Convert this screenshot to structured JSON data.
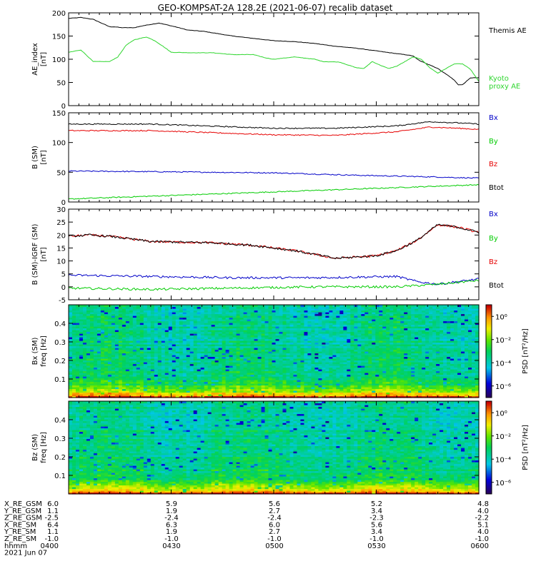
{
  "title": "GEO-KOMPSAT-2A 128.2E (2021-06-07) recalib dataset",
  "colors": {
    "black": "#000000",
    "blue": "#0000c8",
    "green": "#00cc00",
    "red": "#e60000",
    "kyoto": "#2fd62f"
  },
  "chart_data": [
    {
      "type": "line",
      "ylabel": "AE_index\n[nT]",
      "ylim": [
        0,
        200
      ],
      "yticks": [
        0,
        50,
        100,
        150,
        200
      ],
      "series": [
        {
          "name": "Themis AE",
          "color": "#000000",
          "x": [
            0,
            3,
            6,
            8,
            10,
            11,
            13,
            16,
            18,
            22,
            26,
            29,
            33,
            40,
            45,
            50,
            55,
            60,
            65,
            70,
            75,
            80,
            82,
            84,
            85,
            86,
            88,
            90,
            93,
            94,
            95,
            96,
            98,
            100
          ],
          "values": [
            188,
            190,
            186,
            178,
            170,
            170,
            168,
            168,
            172,
            178,
            170,
            163,
            160,
            150,
            145,
            140,
            138,
            134,
            128,
            124,
            118,
            112,
            110,
            107,
            100,
            95,
            88,
            80,
            62,
            55,
            45,
            45,
            60,
            60
          ]
        },
        {
          "name": "Kyoto\nproxy AE",
          "color": "#2fd62f",
          "x": [
            0,
            3,
            6,
            10,
            12,
            14,
            16,
            19,
            21,
            23,
            25,
            30,
            35,
            40,
            45,
            48,
            50,
            53,
            55,
            60,
            62,
            66,
            68,
            70,
            72,
            74,
            76,
            78,
            80,
            82,
            84,
            86,
            88,
            90,
            92,
            94,
            96,
            98,
            100
          ],
          "values": [
            115,
            120,
            95,
            95,
            105,
            130,
            142,
            148,
            140,
            128,
            115,
            114,
            114,
            110,
            110,
            103,
            100,
            103,
            105,
            100,
            95,
            94,
            88,
            82,
            80,
            95,
            87,
            80,
            85,
            95,
            105,
            100,
            82,
            70,
            80,
            90,
            90,
            78,
            52
          ]
        }
      ]
    },
    {
      "type": "line",
      "ylabel": "B (SM)\n[nT]",
      "ylim": [
        0,
        150
      ],
      "yticks": [
        0,
        50,
        100,
        150
      ],
      "series": [
        {
          "name": "Bx",
          "color": "#0000c8",
          "x": [
            0,
            20,
            50,
            70,
            90,
            100
          ],
          "values": [
            52,
            51,
            49,
            45,
            42,
            40
          ]
        },
        {
          "name": "By",
          "color": "#00cc00",
          "x": [
            0,
            25,
            50,
            75,
            100
          ],
          "values": [
            5,
            11,
            17,
            23,
            29
          ]
        },
        {
          "name": "Bz",
          "color": "#e60000",
          "x": [
            0,
            20,
            50,
            65,
            80,
            88,
            95,
            100
          ],
          "values": [
            120,
            120,
            113,
            112,
            118,
            126,
            124,
            122
          ]
        },
        {
          "name": "Btot",
          "color": "#000000",
          "x": [
            0,
            20,
            50,
            65,
            80,
            88,
            95,
            100
          ],
          "values": [
            131,
            131,
            124,
            124,
            128,
            135,
            133,
            131
          ]
        }
      ]
    },
    {
      "type": "line",
      "ylabel": "B (SM)-IGRF (SM)\n[nT]",
      "ylim": [
        -5,
        30
      ],
      "yticks": [
        -5,
        0,
        5,
        10,
        15,
        20,
        25,
        30
      ],
      "series": [
        {
          "name": "Bx",
          "color": "#0000c8",
          "x": [
            0,
            20,
            40,
            60,
            80,
            85,
            90,
            100
          ],
          "values": [
            4.5,
            4,
            3.5,
            3.5,
            4,
            2,
            1,
            3
          ]
        },
        {
          "name": "By",
          "color": "#00cc00",
          "x": [
            0,
            20,
            40,
            60,
            80,
            90,
            100
          ],
          "values": [
            -0.5,
            -1,
            -0.5,
            0,
            0,
            1,
            2.5
          ]
        },
        {
          "name": "Bz",
          "color": "#e60000",
          "x": [
            0,
            5,
            10,
            20,
            35,
            45,
            55,
            65,
            75,
            80,
            85,
            90,
            95,
            100
          ],
          "values": [
            19.5,
            20,
            19.5,
            17.5,
            17,
            16,
            14,
            11,
            12,
            14,
            18,
            24,
            23,
            21
          ]
        },
        {
          "name": "Btot",
          "color": "#000000",
          "x": [
            0,
            5,
            10,
            20,
            35,
            45,
            55,
            65,
            75,
            80,
            85,
            90,
            95,
            100
          ],
          "values": [
            19.5,
            20,
            19.5,
            17.5,
            17,
            16,
            14,
            11,
            12,
            14,
            18,
            24,
            23,
            21
          ]
        }
      ]
    },
    {
      "type": "heatmap",
      "ylabel": "Bx (SM)\nfreq [Hz]",
      "ylim": [
        0,
        0.5
      ],
      "yticks": [
        0.1,
        0.2,
        0.3,
        0.4
      ],
      "colorbar": {
        "label": "PSD [nT²/Hz]",
        "ticks": [
          "10⁰",
          "10⁻²",
          "10⁻⁴",
          "10⁻⁶"
        ],
        "exponents": [
          0,
          -2,
          -4,
          -6
        ],
        "range": [
          -7,
          1
        ]
      }
    },
    {
      "type": "heatmap",
      "ylabel": "Bz (SM)\nfreq [Hz]",
      "ylim": [
        0,
        0.5
      ],
      "yticks": [
        0.1,
        0.2,
        0.3,
        0.4
      ],
      "colorbar": {
        "label": "PSD [nT²/Hz]",
        "ticks": [
          "10⁰",
          "10⁻²",
          "10⁻⁴",
          "10⁻⁶"
        ],
        "exponents": [
          0,
          -2,
          -4,
          -6
        ],
        "range": [
          -7,
          1
        ]
      }
    }
  ],
  "ephemeris": {
    "rows": [
      {
        "label": "X_RE_GSM",
        "values": [
          "6.0",
          "5.9",
          "5.6",
          "5.2",
          "4.8"
        ]
      },
      {
        "label": "Y_RE_GSM",
        "values": [
          "1.1",
          "1.9",
          "2.7",
          "3.4",
          "4.0"
        ]
      },
      {
        "label": "Z_RE_GSM",
        "values": [
          "-2.5",
          "-2.4",
          "-2.4",
          "-2.3",
          "-2.2"
        ]
      },
      {
        "label": "X_RE_SM",
        "values": [
          "6.4",
          "6.3",
          "6.0",
          "5.6",
          "5.1"
        ]
      },
      {
        "label": "Y_RE_SM",
        "values": [
          "1.1",
          "1.9",
          "2.7",
          "3.4",
          "4.0"
        ]
      },
      {
        "label": "Z_RE_SM",
        "values": [
          "-1.0",
          "-1.0",
          "-1.0",
          "-1.0",
          "-1.0"
        ]
      },
      {
        "label": "hhmm",
        "values": [
          "0400",
          "0430",
          "0500",
          "0530",
          "0600"
        ]
      }
    ],
    "date": "2021 Jun 07"
  }
}
